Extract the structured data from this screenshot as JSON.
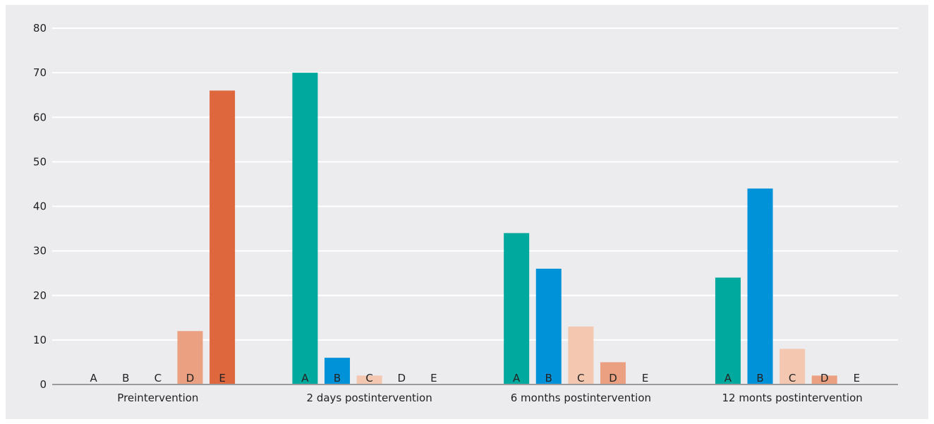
{
  "chart_data": {
    "type": "bar",
    "categories": [
      "Preintervention",
      "2 days postintervention",
      "6 months postintervention",
      "12 monts postintervention"
    ],
    "series": [
      {
        "label": "A",
        "color": "#00a99d",
        "values": [
          0,
          70,
          34,
          24
        ]
      },
      {
        "label": "B",
        "color": "#0092d8",
        "values": [
          0,
          6,
          26,
          44
        ]
      },
      {
        "label": "C",
        "color": "#f4c7b0",
        "values": [
          0,
          2,
          13,
          8
        ]
      },
      {
        "label": "D",
        "color": "#eba181",
        "values": [
          12,
          0,
          5,
          2
        ]
      },
      {
        "label": "E",
        "color": "#de673d",
        "values": [
          66,
          0,
          0,
          0
        ]
      }
    ],
    "yticks": [
      0,
      10,
      20,
      30,
      40,
      50,
      60,
      70,
      80
    ],
    "ylim": [
      0,
      80
    ],
    "grid": true,
    "legend": "none",
    "colors": {
      "background": "#ecebee",
      "gridline": "#ffffff",
      "axis": "#9a9a9a"
    }
  }
}
